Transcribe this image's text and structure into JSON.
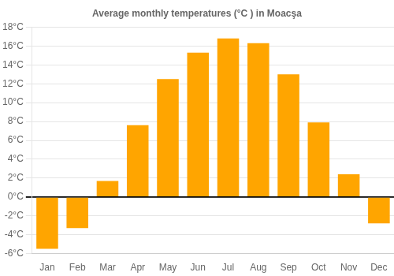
{
  "chart_data": {
    "type": "bar",
    "title": "Average monthly temperatures (°C ) in Moacşa",
    "categories": [
      "Jan",
      "Feb",
      "Mar",
      "Apr",
      "May",
      "Jun",
      "Jul",
      "Aug",
      "Sep",
      "Oct",
      "Nov",
      "Dec"
    ],
    "values": [
      -5.5,
      -3.3,
      1.7,
      7.6,
      12.5,
      15.3,
      16.8,
      16.3,
      13.0,
      7.9,
      2.4,
      -2.8
    ],
    "color": "#FFA500",
    "ylim": [
      -6,
      18
    ],
    "yticks": [
      {
        "value": -6,
        "label": "-6°C"
      },
      {
        "value": -4,
        "label": "-4°C"
      },
      {
        "value": -2,
        "label": "-2°C"
      },
      {
        "value": 0,
        "label": "0°C"
      },
      {
        "value": 2,
        "label": "2°C"
      },
      {
        "value": 4,
        "label": "4°C"
      },
      {
        "value": 6,
        "label": "6°C"
      },
      {
        "value": 8,
        "label": "8°C"
      },
      {
        "value": 10,
        "label": "10°C"
      },
      {
        "value": 12,
        "label": "12°C"
      },
      {
        "value": 14,
        "label": "14°C"
      },
      {
        "value": 16,
        "label": "16°C"
      },
      {
        "value": 18,
        "label": "18°C"
      }
    ],
    "grid": "y"
  }
}
